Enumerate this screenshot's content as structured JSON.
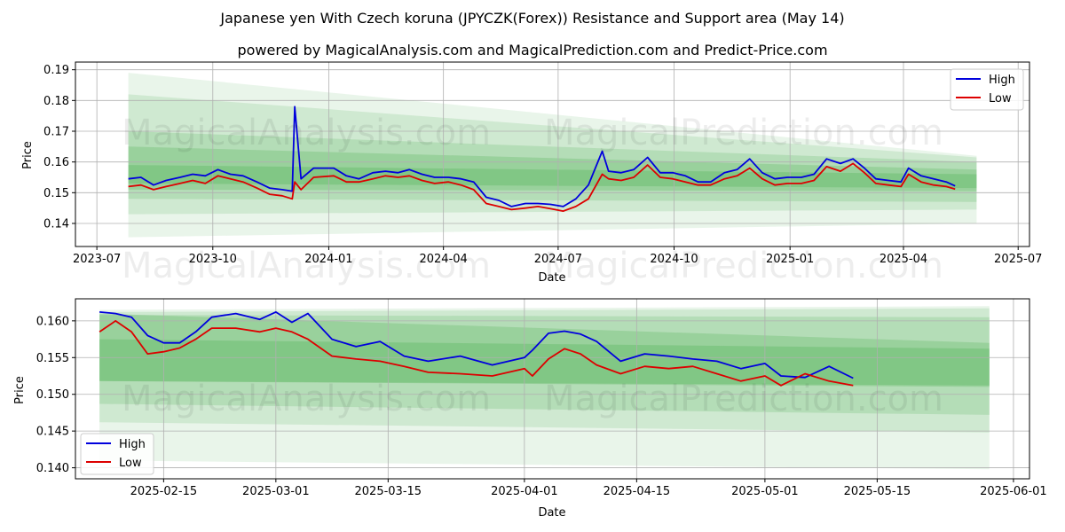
{
  "title_line1": "Japanese yen With Czech koruna (JPYCZK(Forex)) Resistance and Support area (May 14)",
  "title_line2": "powered by MagicalAnalysis.com and MagicalPrediction.com and Predict-Price.com",
  "watermark_left": "MagicalAnalysis.com",
  "watermark_right": "MagicalPrediction.com",
  "colors": {
    "high": "#0000dd",
    "low": "#dd0000",
    "band": "#4caf50"
  },
  "chart_data": [
    {
      "type": "line",
      "xlabel": "Date",
      "ylabel": "Price",
      "legend": "top-right",
      "grid": true,
      "xlim": [
        "2023-06-14",
        "2025-07-10"
      ],
      "ylim": [
        0.1325,
        0.1925
      ],
      "xticks": [
        "2023-07",
        "2023-10",
        "2024-01",
        "2024-04",
        "2024-07",
        "2024-10",
        "2025-01",
        "2025-04",
        "2025-07"
      ],
      "yticks": [
        "0.14",
        "0.15",
        "0.16",
        "0.17",
        "0.18",
        "0.19"
      ],
      "band_range": [
        "2023-07-26",
        "2025-05-29"
      ],
      "bands": [
        {
          "start": [
            0.1355,
            0.189
          ],
          "end": [
            0.14,
            0.162
          ],
          "opacity": 0.12
        },
        {
          "start": [
            0.143,
            0.182
          ],
          "end": [
            0.1445,
            0.1615
          ],
          "opacity": 0.16
        },
        {
          "start": [
            0.148,
            0.17
          ],
          "end": [
            0.147,
            0.16
          ],
          "opacity": 0.2
        },
        {
          "start": [
            0.151,
            0.165
          ],
          "end": [
            0.1505,
            0.1575
          ],
          "opacity": 0.26
        },
        {
          "start": [
            0.153,
            0.159
          ],
          "end": [
            0.1515,
            0.156
          ],
          "opacity": 0.3
        }
      ],
      "x": [
        "2023-07-26",
        "2023-08-05",
        "2023-08-15",
        "2023-08-25",
        "2023-09-05",
        "2023-09-15",
        "2023-09-25",
        "2023-10-05",
        "2023-10-15",
        "2023-10-25",
        "2023-11-05",
        "2023-11-15",
        "2023-11-25",
        "2023-12-03",
        "2023-12-05",
        "2023-12-10",
        "2023-12-20",
        "2024-01-05",
        "2024-01-15",
        "2024-01-25",
        "2024-02-05",
        "2024-02-15",
        "2024-02-25",
        "2024-03-05",
        "2024-03-15",
        "2024-03-25",
        "2024-04-05",
        "2024-04-15",
        "2024-04-25",
        "2024-05-05",
        "2024-05-15",
        "2024-05-25",
        "2024-06-05",
        "2024-06-15",
        "2024-06-25",
        "2024-07-05",
        "2024-07-15",
        "2024-07-25",
        "2024-08-05",
        "2024-08-10",
        "2024-08-20",
        "2024-08-30",
        "2024-09-10",
        "2024-09-20",
        "2024-09-30",
        "2024-10-10",
        "2024-10-20",
        "2024-10-30",
        "2024-11-10",
        "2024-11-20",
        "2024-11-30",
        "2024-12-10",
        "2024-12-20",
        "2024-12-30",
        "2025-01-10",
        "2025-01-20",
        "2025-01-30",
        "2025-02-10",
        "2025-02-20",
        "2025-03-01",
        "2025-03-10",
        "2025-03-20",
        "2025-03-30",
        "2025-04-05",
        "2025-04-15",
        "2025-04-25",
        "2025-05-05",
        "2025-05-12"
      ],
      "series": [
        {
          "name": "High",
          "values": [
            0.1545,
            0.155,
            0.1525,
            0.154,
            0.155,
            0.156,
            0.1555,
            0.1575,
            0.156,
            0.1555,
            0.1535,
            0.1515,
            0.151,
            0.1505,
            0.178,
            0.1545,
            0.158,
            0.158,
            0.1555,
            0.1545,
            0.1565,
            0.157,
            0.1565,
            0.1575,
            0.156,
            0.155,
            0.155,
            0.1545,
            0.1535,
            0.1485,
            0.1475,
            0.1455,
            0.1465,
            0.1465,
            0.1462,
            0.1455,
            0.148,
            0.1525,
            0.1635,
            0.157,
            0.1565,
            0.1575,
            0.1615,
            0.1565,
            0.1565,
            0.1555,
            0.1535,
            0.1535,
            0.1565,
            0.1575,
            0.161,
            0.1565,
            0.1545,
            0.155,
            0.155,
            0.156,
            0.161,
            0.1595,
            0.161,
            0.158,
            0.1545,
            0.154,
            0.1535,
            0.158,
            0.1555,
            0.1545,
            0.1535,
            0.1522
          ]
        },
        {
          "name": "Low",
          "values": [
            0.152,
            0.1525,
            0.151,
            0.152,
            0.153,
            0.154,
            0.153,
            0.1555,
            0.1545,
            0.1535,
            0.1515,
            0.1495,
            0.149,
            0.148,
            0.1535,
            0.151,
            0.155,
            0.1555,
            0.1535,
            0.1535,
            0.1545,
            0.1555,
            0.155,
            0.1555,
            0.154,
            0.153,
            0.1535,
            0.1525,
            0.151,
            0.1465,
            0.1455,
            0.1445,
            0.145,
            0.1455,
            0.1448,
            0.144,
            0.1455,
            0.148,
            0.156,
            0.1545,
            0.154,
            0.155,
            0.159,
            0.155,
            0.1545,
            0.1535,
            0.1525,
            0.1525,
            0.1545,
            0.1555,
            0.158,
            0.1545,
            0.1525,
            0.153,
            0.153,
            0.154,
            0.1585,
            0.157,
            0.1595,
            0.1565,
            0.153,
            0.1525,
            0.152,
            0.156,
            0.1535,
            0.1525,
            0.152,
            0.1512
          ]
        }
      ]
    },
    {
      "type": "line",
      "xlabel": "Date",
      "ylabel": "Price",
      "legend": "bottom-left",
      "grid": true,
      "xlim": [
        "2025-02-04",
        "2025-06-03"
      ],
      "ylim": [
        0.1385,
        0.163
      ],
      "xticks": [
        "2025-02-15",
        "2025-03-01",
        "2025-03-15",
        "2025-04-01",
        "2025-04-15",
        "2025-05-01",
        "2025-05-15",
        "2025-06-01"
      ],
      "yticks": [
        "0.140",
        "0.145",
        "0.150",
        "0.155",
        "0.160"
      ],
      "band_range": [
        "2025-02-07",
        "2025-05-29"
      ],
      "bands": [
        {
          "start": [
            0.141,
            0.1615
          ],
          "end": [
            0.1398,
            0.162
          ],
          "opacity": 0.12
        },
        {
          "start": [
            0.1462,
            0.1612
          ],
          "end": [
            0.1448,
            0.1617
          ],
          "opacity": 0.16
        },
        {
          "start": [
            0.1487,
            0.1608
          ],
          "end": [
            0.1472,
            0.1605
          ],
          "opacity": 0.2
        },
        {
          "start": [
            0.1518,
            0.161
          ],
          "end": [
            0.151,
            0.157
          ],
          "opacity": 0.26
        },
        {
          "start": [
            0.1518,
            0.1575
          ],
          "end": [
            0.1512,
            0.1562
          ],
          "opacity": 0.3
        }
      ],
      "x": [
        "2025-02-07",
        "2025-02-09",
        "2025-02-11",
        "2025-02-13",
        "2025-02-15",
        "2025-02-17",
        "2025-02-19",
        "2025-02-21",
        "2025-02-24",
        "2025-02-27",
        "2025-03-01",
        "2025-03-03",
        "2025-03-05",
        "2025-03-08",
        "2025-03-11",
        "2025-03-14",
        "2025-03-17",
        "2025-03-20",
        "2025-03-24",
        "2025-03-28",
        "2025-04-01",
        "2025-04-02",
        "2025-04-04",
        "2025-04-06",
        "2025-04-08",
        "2025-04-10",
        "2025-04-13",
        "2025-04-16",
        "2025-04-19",
        "2025-04-22",
        "2025-04-25",
        "2025-04-28",
        "2025-05-01",
        "2025-05-03",
        "2025-05-06",
        "2025-05-09",
        "2025-05-12"
      ],
      "series": [
        {
          "name": "High",
          "values": [
            0.1612,
            0.161,
            0.1605,
            0.158,
            0.157,
            0.157,
            0.1585,
            0.1605,
            0.161,
            0.1602,
            0.1612,
            0.1598,
            0.161,
            0.1575,
            0.1565,
            0.1572,
            0.1552,
            0.1545,
            0.1552,
            0.154,
            0.155,
            0.156,
            0.1583,
            0.1586,
            0.1582,
            0.1572,
            0.1545,
            0.1555,
            0.1552,
            0.1548,
            0.1545,
            0.1535,
            0.1542,
            0.1525,
            0.1523,
            0.1538,
            0.1522
          ]
        },
        {
          "name": "Low",
          "values": [
            0.1585,
            0.16,
            0.1585,
            0.1555,
            0.1558,
            0.1563,
            0.1575,
            0.159,
            0.159,
            0.1585,
            0.159,
            0.1585,
            0.1575,
            0.1552,
            0.1548,
            0.1545,
            0.1538,
            0.153,
            0.1528,
            0.1525,
            0.1535,
            0.1525,
            0.1548,
            0.1562,
            0.1555,
            0.154,
            0.1528,
            0.1538,
            0.1535,
            0.1538,
            0.1528,
            0.1518,
            0.1525,
            0.1512,
            0.1528,
            0.1518,
            0.1512
          ]
        }
      ]
    }
  ]
}
